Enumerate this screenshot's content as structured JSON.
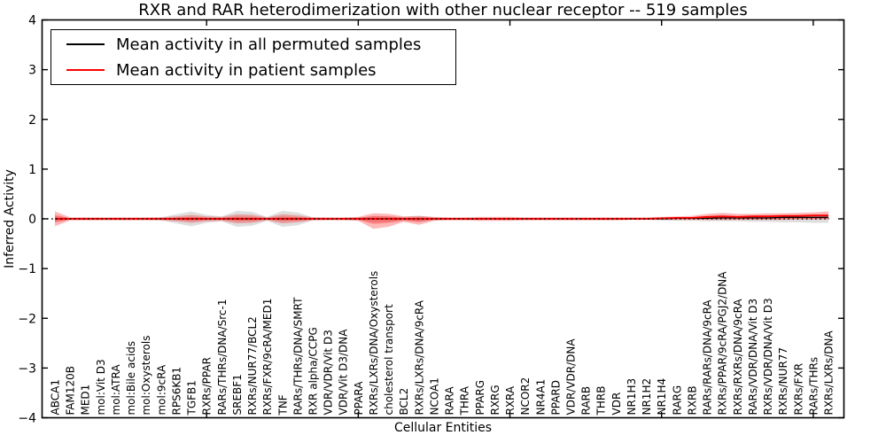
{
  "chart_data": {
    "type": "line",
    "title": "RXR and RAR heterodimerization with other nuclear receptor -- 519 samples",
    "xlabel": "Cellular Entities",
    "ylabel": "Inferred Activity",
    "ylim": [
      -4,
      4
    ],
    "yticks": [
      4,
      3,
      2,
      1,
      0,
      -1,
      -2,
      -3,
      -4
    ],
    "x_major_ticks": [
      10,
      20,
      30,
      40,
      50
    ],
    "grid": false,
    "legend_position": "upper left",
    "zero_line": {
      "value": 0,
      "style": "dotted",
      "color": "#000000"
    },
    "categories": [
      "ABCA1",
      "FAM120B",
      "MED1",
      "mol:Vit D3",
      "mol:ATRA",
      "mol:Bile acids",
      "mol:Oxysterols",
      "mol:9cRA",
      "RPS6KB1",
      "TGFB1",
      "RXRs/PPAR",
      "RARs/THRs/DNA/Src-1",
      "SREBF1",
      "RXRs/NUR77/BCL2",
      "RXRs/FXR/9cRA/MED1",
      "TNF",
      "RARs/THRs/DNA/SMRT",
      "RXR alpha/CCPG",
      "VDR/VDR/Vit D3",
      "VDR/Vit D3/DNA",
      "PPARA",
      "RXRs/LXRs/DNA/Oxysterols",
      "cholesterol transport",
      "BCL2",
      "RXRs/LXRs/DNA/9cRA",
      "NCOA1",
      "RARA",
      "THRA",
      "PPARG",
      "RXRG",
      "RXRA",
      "NCOR2",
      "NR4A1",
      "PPARD",
      "VDR/VDR/DNA",
      "RARB",
      "THRB",
      "VDR",
      "NR1H3",
      "NR1H2",
      "NR1H4",
      "RARG",
      "RXRB",
      "RARs/RARs/DNA/9cRA",
      "RXRs/PPAR/9cRA/PGJ2/DNA",
      "RXRs/RXRs/DNA/9cRA",
      "RARs/VDR/DNA/Vit D3",
      "RXRs/VDR/DNA/Vit D3",
      "RXRs/NUR77",
      "RXRs/FXR",
      "RARs/THRs",
      "RXRs/LXRs/DNA"
    ],
    "series": [
      {
        "name": "Mean activity in all permuted samples",
        "color": "#000000",
        "values": [
          0,
          0,
          0,
          0,
          0,
          0,
          0,
          0,
          0,
          0,
          0,
          0,
          0,
          0,
          0,
          0,
          0,
          0,
          0,
          0,
          0,
          0,
          0,
          0,
          0,
          0,
          0,
          0,
          0,
          0,
          0,
          0,
          0,
          0,
          0,
          0,
          0,
          0,
          0,
          0,
          0,
          0.01,
          0.01,
          0.01,
          0.02,
          0.02,
          0.02,
          0.02,
          0.03,
          0.03,
          0.03,
          0.03
        ]
      },
      {
        "name": "Mean activity in patient samples",
        "color": "#ff0000",
        "values": [
          0,
          0,
          0,
          0,
          0,
          0,
          0,
          0,
          0,
          0,
          0,
          0,
          0,
          0,
          0,
          0,
          0,
          0,
          0,
          0,
          0,
          0,
          0,
          0,
          0,
          0,
          0,
          0,
          0,
          0,
          0,
          0,
          0,
          0,
          0,
          0,
          0,
          0,
          0,
          0,
          0.01,
          0.02,
          0.02,
          0.04,
          0.05,
          0.04,
          0.05,
          0.05,
          0.06,
          0.06,
          0.07,
          0.07
        ]
      }
    ],
    "bands": [
      {
        "name": "permuted-samples-range",
        "color": "#000000",
        "opacity": 0.13,
        "hi": [
          0.05,
          0.02,
          0.02,
          0.02,
          0.02,
          0.02,
          0.02,
          0.03,
          0.09,
          0.15,
          0.08,
          0.05,
          0.16,
          0.14,
          0.04,
          0.16,
          0.13,
          0.03,
          0.02,
          0.02,
          0.03,
          0.05,
          0.05,
          0.04,
          0.06,
          0.03,
          0.02,
          0.02,
          0.02,
          0.02,
          0.02,
          0.02,
          0.02,
          0.02,
          0.02,
          0.02,
          0.02,
          0.02,
          0.02,
          0.02,
          0.03,
          0.03,
          0.03,
          0.04,
          0.04,
          0.04,
          0.04,
          0.04,
          0.05,
          0.05,
          0.05,
          0.05
        ],
        "lo": [
          -0.05,
          -0.02,
          -0.02,
          -0.02,
          -0.02,
          -0.02,
          -0.02,
          -0.03,
          -0.09,
          -0.15,
          -0.08,
          -0.05,
          -0.16,
          -0.14,
          -0.04,
          -0.16,
          -0.13,
          -0.03,
          -0.02,
          -0.02,
          -0.03,
          -0.05,
          -0.05,
          -0.04,
          -0.06,
          -0.03,
          -0.02,
          -0.02,
          -0.02,
          -0.02,
          -0.02,
          -0.02,
          -0.02,
          -0.02,
          -0.02,
          -0.02,
          -0.02,
          -0.02,
          -0.02,
          -0.02,
          -0.03,
          -0.04,
          -0.04,
          -0.05,
          -0.05,
          -0.05,
          -0.06,
          -0.06,
          -0.07,
          -0.07,
          -0.08,
          -0.08
        ]
      },
      {
        "name": "patient-samples-range",
        "color": "#ff0000",
        "opacity": 0.28,
        "core_scale": 0.5,
        "hi": [
          0.15,
          0.03,
          0.03,
          0.03,
          0.03,
          0.03,
          0.03,
          0.03,
          0.05,
          0.08,
          0.05,
          0.04,
          0.09,
          0.08,
          0.03,
          0.09,
          0.07,
          0.03,
          0.03,
          0.03,
          0.04,
          0.11,
          0.1,
          0.05,
          0.06,
          0.04,
          0.03,
          0.03,
          0.04,
          0.04,
          0.04,
          0.03,
          0.03,
          0.03,
          0.03,
          0.03,
          0.03,
          0.03,
          0.03,
          0.03,
          0.04,
          0.05,
          0.06,
          0.1,
          0.12,
          0.1,
          0.1,
          0.11,
          0.11,
          0.12,
          0.13,
          0.15
        ],
        "lo": [
          -0.15,
          -0.03,
          -0.03,
          -0.03,
          -0.03,
          -0.03,
          -0.03,
          -0.03,
          -0.05,
          -0.08,
          -0.05,
          -0.04,
          -0.09,
          -0.08,
          -0.03,
          -0.09,
          -0.07,
          -0.03,
          -0.03,
          -0.03,
          -0.04,
          -0.2,
          -0.16,
          -0.06,
          -0.12,
          -0.04,
          -0.03,
          -0.03,
          -0.04,
          -0.04,
          -0.04,
          -0.03,
          -0.03,
          -0.03,
          -0.03,
          -0.03,
          -0.03,
          -0.03,
          -0.02,
          -0.02,
          -0.02,
          -0.02,
          -0.02,
          -0.02,
          -0.02,
          -0.02,
          -0.02,
          -0.02,
          -0.02,
          -0.01,
          -0.01,
          -0.01
        ]
      }
    ]
  }
}
